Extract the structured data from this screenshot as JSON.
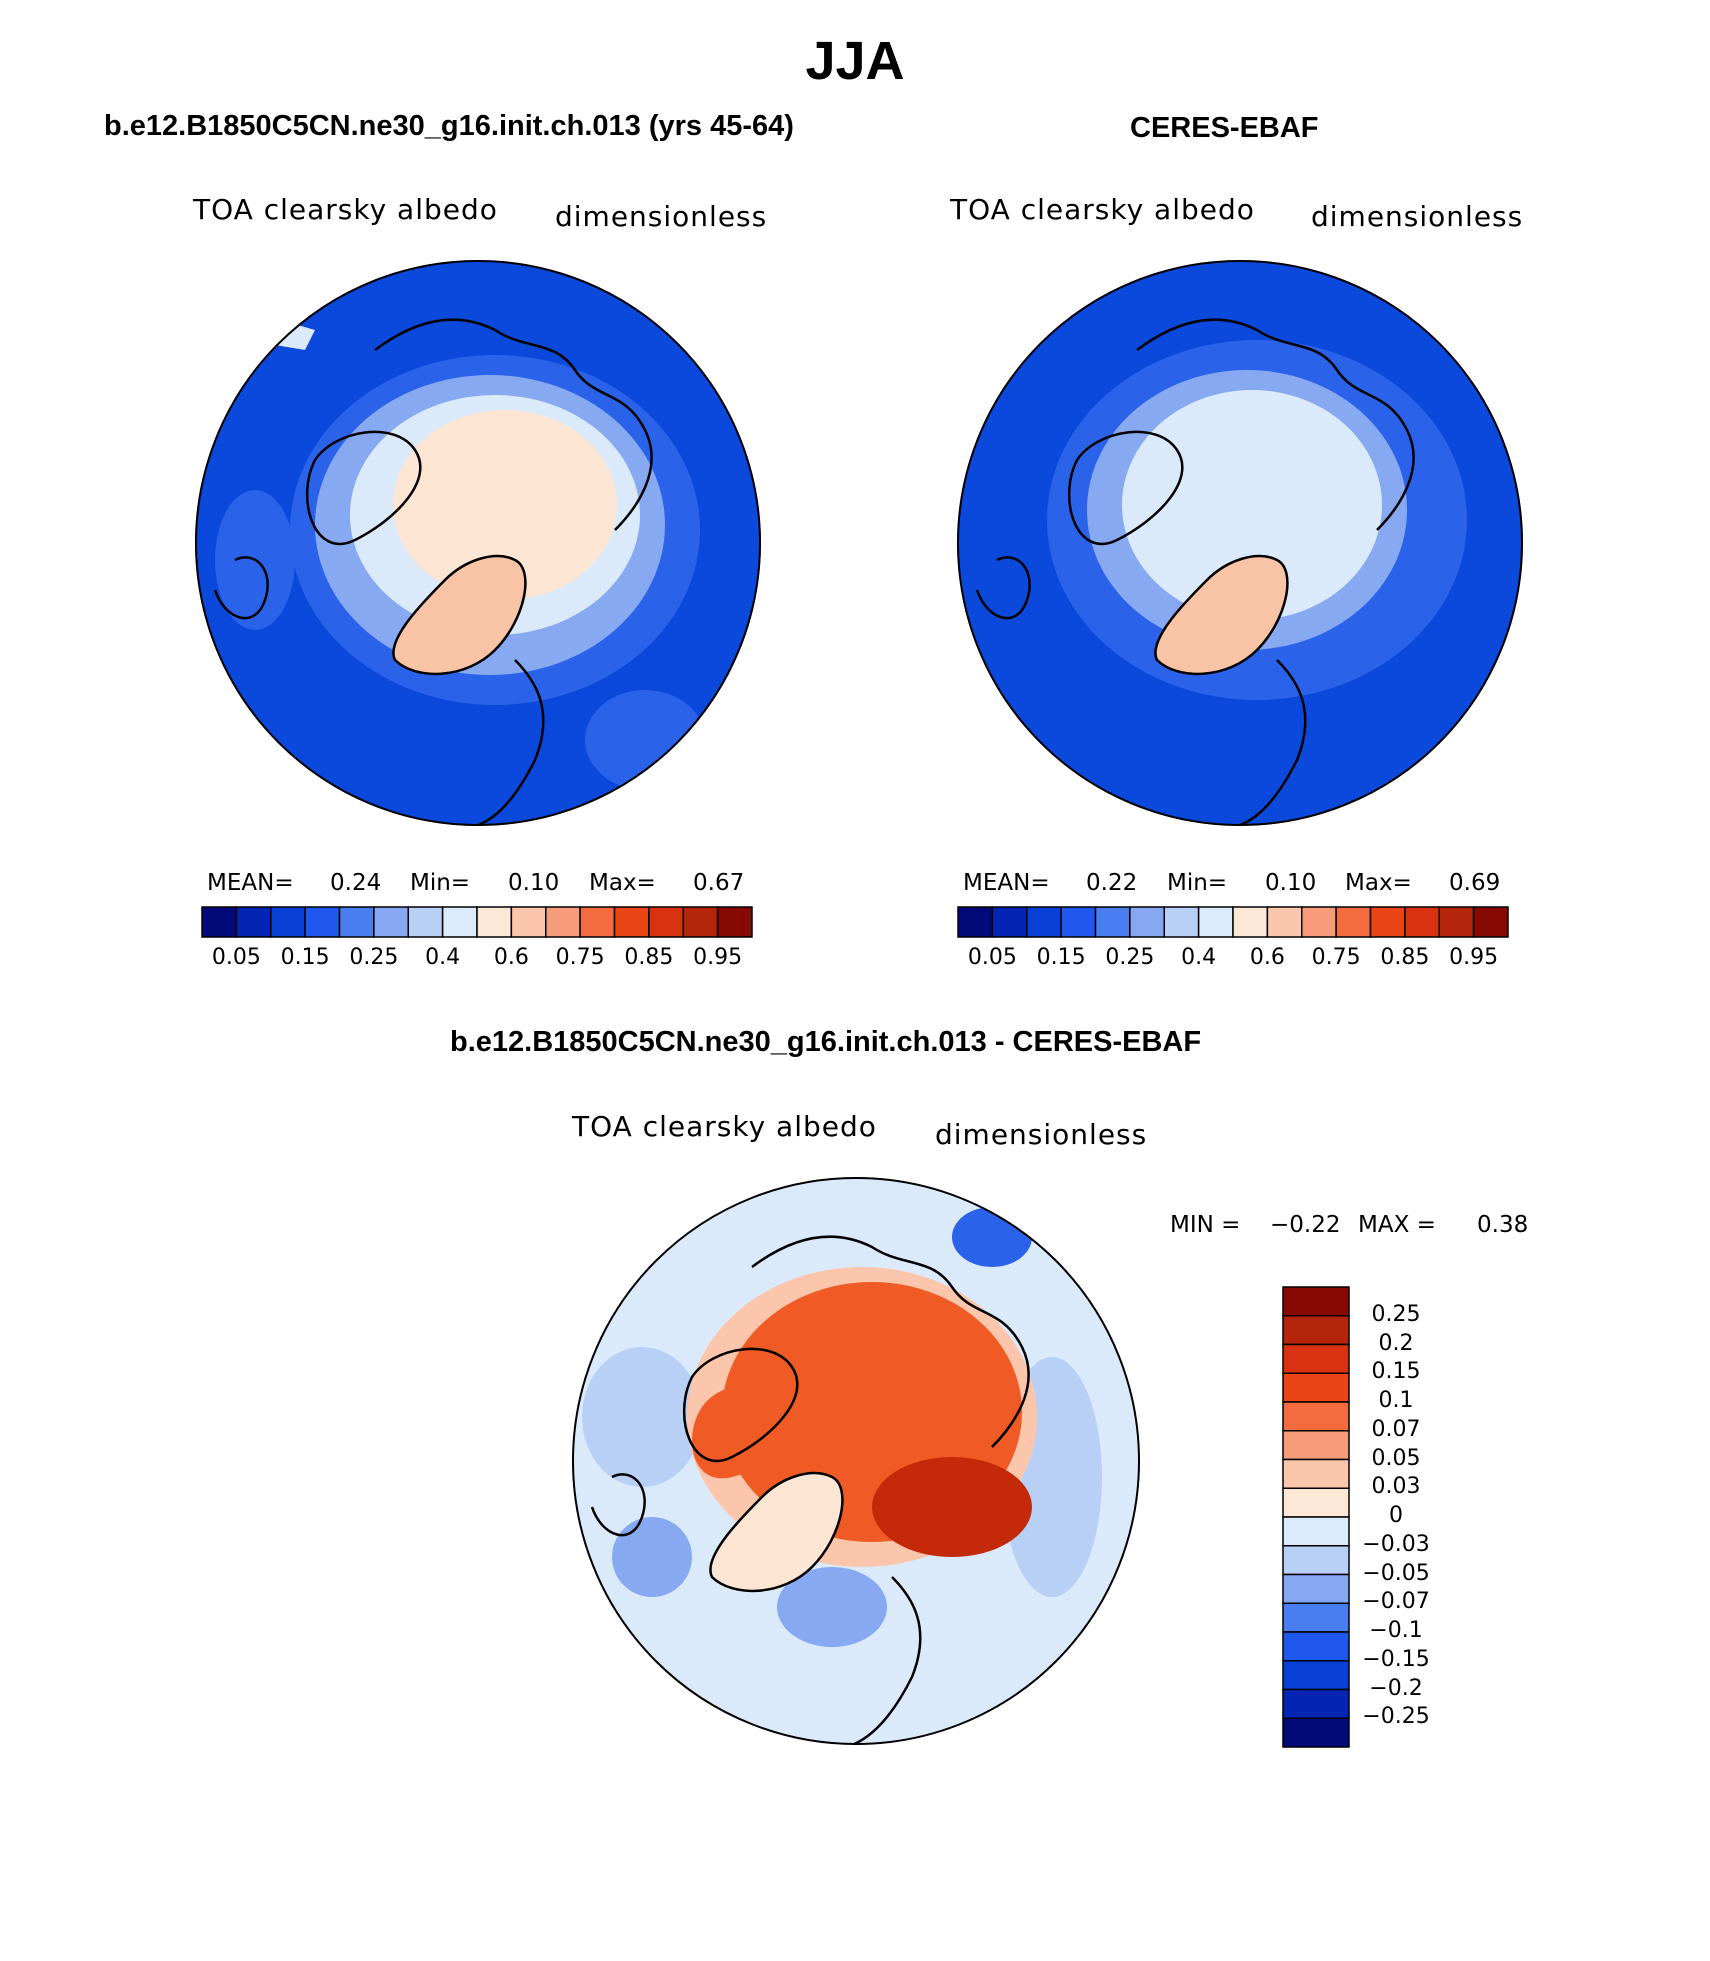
{
  "figure": {
    "title": "JJA"
  },
  "panels": [
    {
      "title": "b.e12.B1850C5CN.ne30_g16.init.ch.013 (yrs 45-64)",
      "variable": "TOA clearsky albedo",
      "units": "dimensionless",
      "stats": {
        "mean_label": "MEAN=",
        "mean": "0.24",
        "min_label": "Min=",
        "min": "0.10",
        "max_label": "Max=",
        "max": "0.67"
      }
    },
    {
      "title": "CERES-EBAF",
      "variable": "TOA clearsky albedo",
      "units": "dimensionless",
      "stats": {
        "mean_label": "MEAN=",
        "mean": "0.22",
        "min_label": "Min=",
        "min": "0.10",
        "max_label": "Max=",
        "max": "0.69"
      }
    }
  ],
  "abs_colorbar": {
    "ticks": [
      "0.05",
      "0.15",
      "0.25",
      "0.4",
      "0.6",
      "0.75",
      "0.85",
      "0.95"
    ],
    "colors": [
      "#020a7a",
      "#0225b4",
      "#0840d8",
      "#2058ee",
      "#4a7ef0",
      "#86a8f3",
      "#b8d0f6",
      "#dcebfb",
      "#fde8d7",
      "#fbc6ab",
      "#f79c7b",
      "#f26c3f",
      "#ea4516",
      "#d83210",
      "#b4250c",
      "#860a02"
    ]
  },
  "diff_panel": {
    "title": "b.e12.B1850C5CN.ne30_g16.init.ch.013 - CERES-EBAF",
    "variable": "TOA clearsky albedo",
    "units": "dimensionless",
    "stats": {
      "min_label": "MIN =",
      "min": "−0.22",
      "max_label": "MAX =",
      "max": "0.38"
    }
  },
  "diff_colorbar": {
    "ticks": [
      "0.25",
      "0.2",
      "0.15",
      "0.1",
      "0.07",
      "0.05",
      "0.03",
      "0",
      "−0.03",
      "−0.05",
      "−0.07",
      "−0.1",
      "−0.15",
      "−0.2",
      "−0.25"
    ],
    "colors": [
      "#860a02",
      "#b4250c",
      "#d83210",
      "#ea4516",
      "#f26c3f",
      "#f79c7b",
      "#fbc6ab",
      "#fde8d7",
      "#dcebfb",
      "#b8d0f6",
      "#86a8f3",
      "#4a7ef0",
      "#2058ee",
      "#0840d8",
      "#0225b4",
      "#020a7a"
    ]
  },
  "colors": {
    "deep_blue": "#0b48dc",
    "mid_blue": "#2a62ea",
    "light_blue": "#87a9f1",
    "pale_blue": "#dbeafb",
    "pale_peach": "#fde5d3",
    "salmon": "#f9c4a6",
    "orange_red": "#f05a24",
    "dark_red": "#c42a0a"
  }
}
